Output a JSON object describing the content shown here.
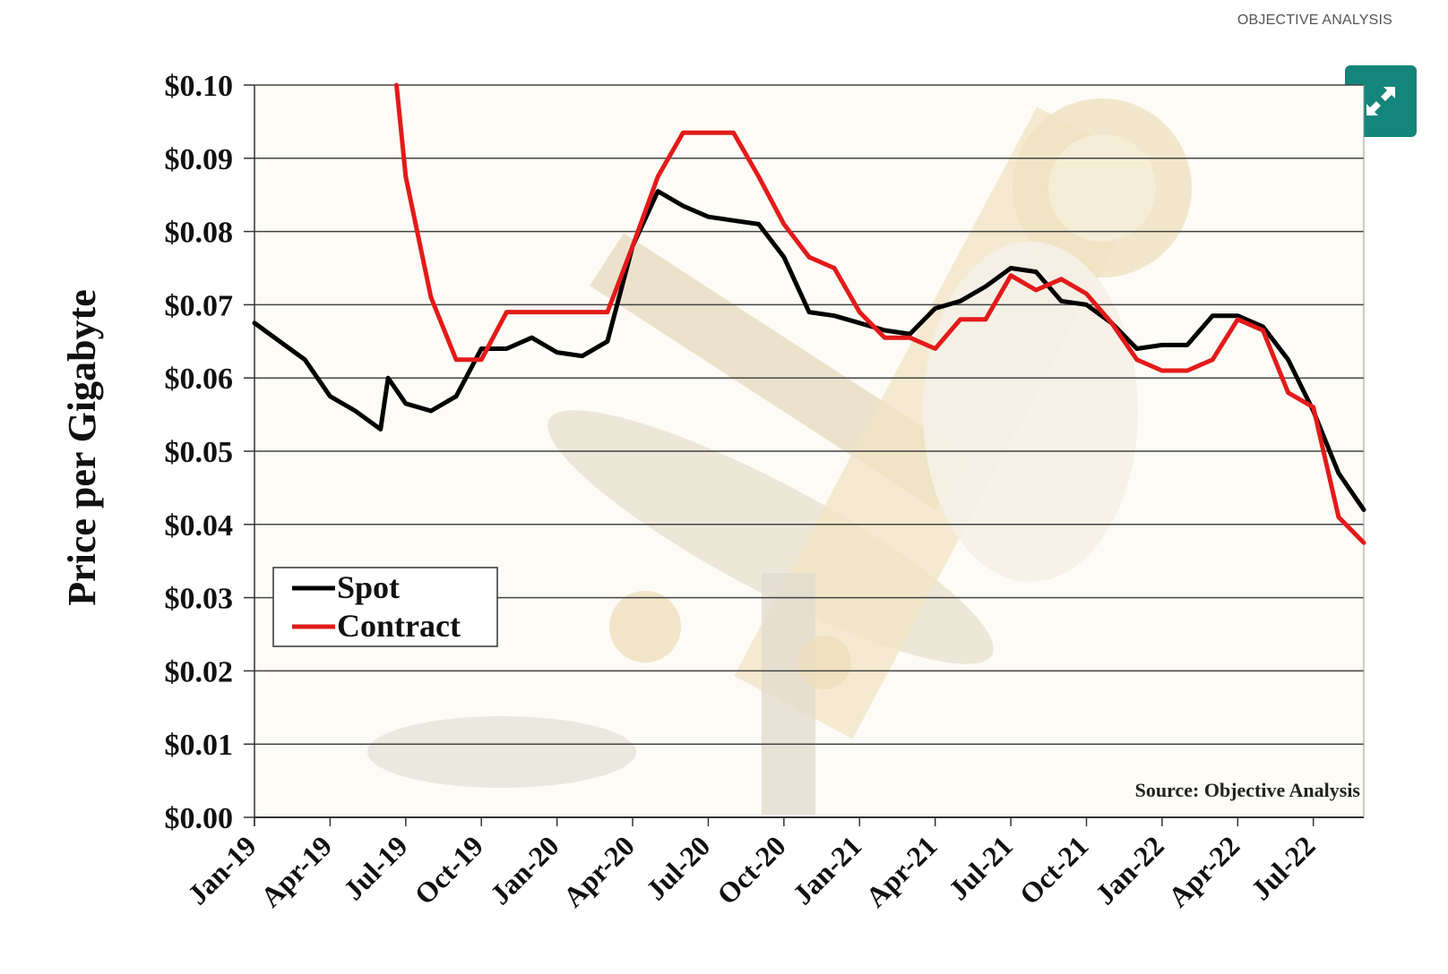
{
  "header": {
    "credit": "OBJECTIVE ANALYSIS"
  },
  "controls": {
    "expand_icon": "expand-arrows-icon",
    "expand_color": "#14857a"
  },
  "chart_data": {
    "type": "line",
    "title": "",
    "ylabel": "Price per Gigabyte",
    "xlabel": "",
    "ylim": [
      0,
      0.1
    ],
    "xlim": [
      "2019-01",
      "2022-09"
    ],
    "grid": true,
    "legend_position": "lower-left",
    "yticks": [
      "$0.00",
      "$0.01",
      "$0.02",
      "$0.03",
      "$0.04",
      "$0.05",
      "$0.06",
      "$0.07",
      "$0.08",
      "$0.09",
      "$0.10"
    ],
    "xticks": [
      "Jan-19",
      "Apr-19",
      "Jul-19",
      "Oct-19",
      "Jan-20",
      "Apr-20",
      "Jul-20",
      "Oct-20",
      "Jan-21",
      "Apr-21",
      "Jul-21",
      "Oct-21",
      "Jan-22",
      "Apr-22",
      "Jul-22"
    ],
    "annotation": "Source: Objective Analysis",
    "series": [
      {
        "name": "Spot",
        "color": "#000000",
        "points": [
          [
            "2019-01",
            0.0675
          ],
          [
            "2019-02",
            0.065
          ],
          [
            "2019-03",
            0.0625
          ],
          [
            "2019-04",
            0.0575
          ],
          [
            "2019-05",
            0.0555
          ],
          [
            "2019-06",
            0.053
          ],
          [
            "2019-06-10",
            0.06
          ],
          [
            "2019-07",
            0.0565
          ],
          [
            "2019-08",
            0.0555
          ],
          [
            "2019-09",
            0.0575
          ],
          [
            "2019-10",
            0.064
          ],
          [
            "2019-11",
            0.064
          ],
          [
            "2019-12",
            0.0655
          ],
          [
            "2020-01",
            0.0635
          ],
          [
            "2020-02",
            0.063
          ],
          [
            "2020-03",
            0.065
          ],
          [
            "2020-04",
            0.078
          ],
          [
            "2020-05",
            0.0855
          ],
          [
            "2020-06",
            0.0835
          ],
          [
            "2020-07",
            0.082
          ],
          [
            "2020-08",
            0.0815
          ],
          [
            "2020-09",
            0.081
          ],
          [
            "2020-10",
            0.0765
          ],
          [
            "2020-11",
            0.069
          ],
          [
            "2020-12",
            0.0685
          ],
          [
            "2021-01",
            0.0675
          ],
          [
            "2021-02",
            0.0665
          ],
          [
            "2021-03",
            0.066
          ],
          [
            "2021-04",
            0.0695
          ],
          [
            "2021-05",
            0.0705
          ],
          [
            "2021-06",
            0.0725
          ],
          [
            "2021-07",
            0.075
          ],
          [
            "2021-08",
            0.0745
          ],
          [
            "2021-09",
            0.0705
          ],
          [
            "2021-10",
            0.07
          ],
          [
            "2021-11",
            0.0675
          ],
          [
            "2021-12",
            0.064
          ],
          [
            "2022-01",
            0.0645
          ],
          [
            "2022-02",
            0.0645
          ],
          [
            "2022-03",
            0.0685
          ],
          [
            "2022-04",
            0.0685
          ],
          [
            "2022-05",
            0.067
          ],
          [
            "2022-06",
            0.0625
          ],
          [
            "2022-07",
            0.0555
          ],
          [
            "2022-08",
            0.047
          ],
          [
            "2022-09",
            0.042
          ]
        ]
      },
      {
        "name": "Contract",
        "color": "#e31a1a",
        "points": [
          [
            "2019-06-20",
            0.1
          ],
          [
            "2019-07",
            0.0875
          ],
          [
            "2019-08",
            0.071
          ],
          [
            "2019-09",
            0.0625
          ],
          [
            "2019-10",
            0.0625
          ],
          [
            "2019-11",
            0.069
          ],
          [
            "2019-12",
            0.069
          ],
          [
            "2020-01",
            0.069
          ],
          [
            "2020-02",
            0.069
          ],
          [
            "2020-03",
            0.069
          ],
          [
            "2020-04",
            0.078
          ],
          [
            "2020-05",
            0.0875
          ],
          [
            "2020-06",
            0.0935
          ],
          [
            "2020-07",
            0.0935
          ],
          [
            "2020-08",
            0.0935
          ],
          [
            "2020-09",
            0.0875
          ],
          [
            "2020-10",
            0.081
          ],
          [
            "2020-11",
            0.0765
          ],
          [
            "2020-12",
            0.075
          ],
          [
            "2021-01",
            0.069
          ],
          [
            "2021-02",
            0.0655
          ],
          [
            "2021-03",
            0.0655
          ],
          [
            "2021-04",
            0.064
          ],
          [
            "2021-05",
            0.068
          ],
          [
            "2021-06",
            0.068
          ],
          [
            "2021-07",
            0.074
          ],
          [
            "2021-08",
            0.072
          ],
          [
            "2021-09",
            0.0735
          ],
          [
            "2021-10",
            0.0715
          ],
          [
            "2021-11",
            0.0675
          ],
          [
            "2021-12",
            0.0625
          ],
          [
            "2022-01",
            0.061
          ],
          [
            "2022-02",
            0.061
          ],
          [
            "2022-03",
            0.0625
          ],
          [
            "2022-04",
            0.068
          ],
          [
            "2022-05",
            0.0665
          ],
          [
            "2022-06",
            0.058
          ],
          [
            "2022-07",
            0.056
          ],
          [
            "2022-08",
            0.041
          ],
          [
            "2022-09",
            0.0375
          ]
        ]
      }
    ]
  }
}
